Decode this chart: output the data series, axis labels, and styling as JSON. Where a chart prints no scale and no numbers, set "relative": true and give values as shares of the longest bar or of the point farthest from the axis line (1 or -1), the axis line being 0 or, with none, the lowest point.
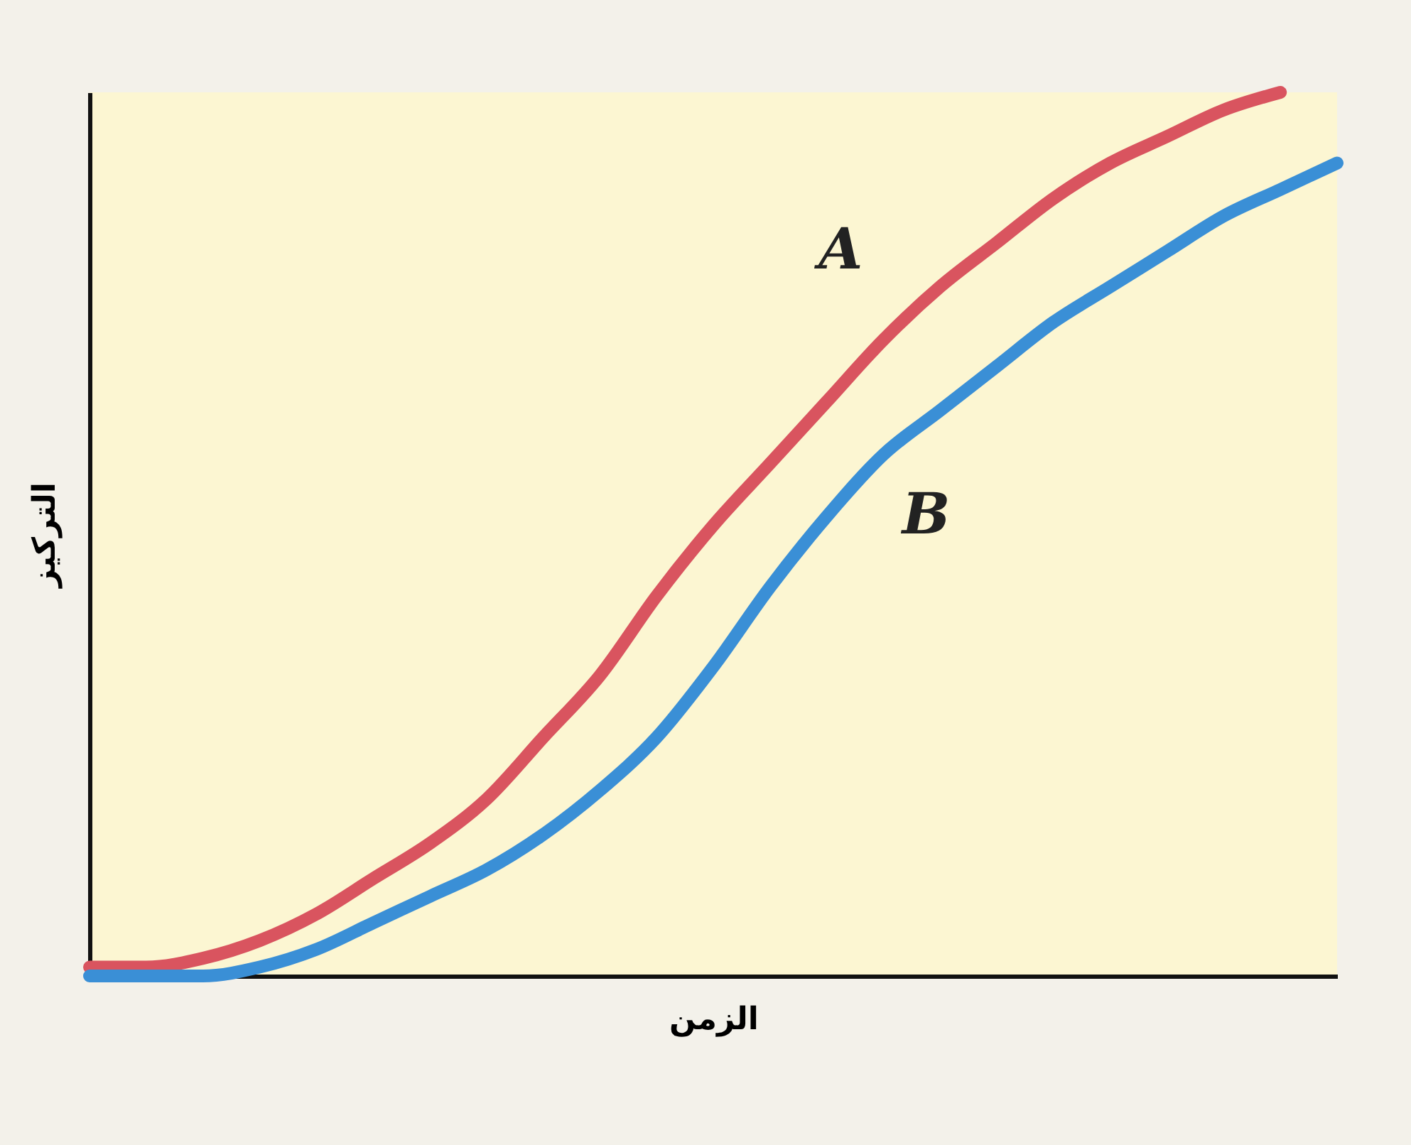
{
  "chart_data": {
    "type": "line",
    "relative": true,
    "xlabel": "الزمن",
    "ylabel": "التركيز",
    "legend": false,
    "grid": false,
    "marker": "none",
    "line_style": "solid",
    "categories": [
      null,
      null,
      null,
      null,
      null,
      null,
      null,
      null,
      null,
      null,
      null,
      null,
      null,
      null,
      null,
      null,
      null,
      null,
      null,
      null,
      null,
      null,
      null
    ],
    "series": [
      {
        "name": "A",
        "color": "#d9545f",
        "values": [
          0.01,
          0.01,
          0.02,
          0.04,
          0.07,
          0.11,
          0.15,
          0.2,
          0.27,
          0.34,
          0.43,
          0.51,
          0.58,
          0.65,
          0.72,
          0.78,
          0.83,
          0.88,
          0.92,
          0.95,
          0.98,
          1,
          null
        ]
      },
      {
        "name": "B",
        "color": "#3a8fd6",
        "values": [
          0,
          0,
          0,
          0.01,
          0.03,
          0.06,
          0.09,
          0.12,
          0.16,
          0.21,
          0.27,
          0.35,
          0.44,
          0.52,
          0.59,
          0.64,
          0.69,
          0.74,
          0.78,
          0.82,
          0.86,
          0.89,
          0.92
        ]
      }
    ]
  }
}
